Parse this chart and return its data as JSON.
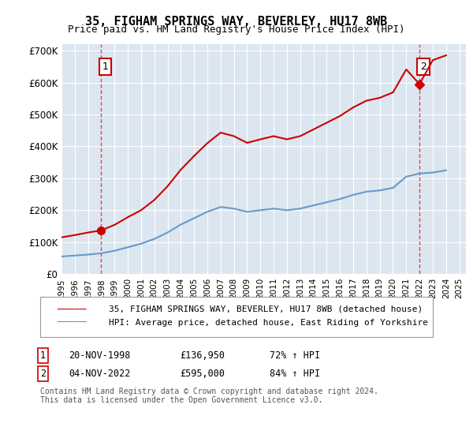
{
  "title": "35, FIGHAM SPRINGS WAY, BEVERLEY, HU17 8WB",
  "subtitle": "Price paid vs. HM Land Registry's House Price Index (HPI)",
  "property_label": "35, FIGHAM SPRINGS WAY, BEVERLEY, HU17 8WB (detached house)",
  "hpi_label": "HPI: Average price, detached house, East Riding of Yorkshire",
  "sale1_date": "20-NOV-1998",
  "sale1_price": 136950,
  "sale1_hpi": "72% ↑ HPI",
  "sale2_date": "04-NOV-2022",
  "sale2_price": 595000,
  "sale2_hpi": "84% ↑ HPI",
  "footer": "Contains HM Land Registry data © Crown copyright and database right 2024.\nThis data is licensed under the Open Government Licence v3.0.",
  "property_color": "#cc0000",
  "hpi_color": "#6699cc",
  "background_color": "#dce6f0",
  "ylim": [
    0,
    720000
  ],
  "yticks": [
    0,
    100000,
    200000,
    300000,
    400000,
    500000,
    600000,
    700000
  ],
  "ytick_labels": [
    "£0",
    "£100K",
    "£200K",
    "£300K",
    "£400K",
    "£500K",
    "£600K",
    "£700K"
  ],
  "hpi_years": [
    1995,
    1996,
    1997,
    1998,
    1999,
    2000,
    2001,
    2002,
    2003,
    2004,
    2005,
    2006,
    2007,
    2008,
    2009,
    2010,
    2011,
    2012,
    2013,
    2014,
    2015,
    2016,
    2017,
    2018,
    2019,
    2020,
    2021,
    2022,
    2023,
    2024
  ],
  "hpi_values": [
    55000,
    58000,
    61000,
    65000,
    73000,
    84000,
    95000,
    110000,
    130000,
    155000,
    175000,
    195000,
    210000,
    205000,
    195000,
    200000,
    205000,
    200000,
    205000,
    215000,
    225000,
    235000,
    248000,
    258000,
    262000,
    270000,
    305000,
    315000,
    318000,
    325000
  ],
  "property_hpi_years": [
    1995,
    1996,
    1997,
    1998,
    1999,
    2000,
    2001,
    2002,
    2003,
    2004,
    2005,
    2006,
    2007,
    2008,
    2009,
    2010,
    2011,
    2012,
    2013,
    2014,
    2015,
    2016,
    2017,
    2018,
    2019,
    2020,
    2021,
    2022,
    2023,
    2024
  ],
  "property_hpi_values": [
    115000,
    122000,
    130000,
    136950,
    154000,
    178000,
    200000,
    232000,
    275000,
    327000,
    370000,
    410000,
    443000,
    432000,
    411000,
    422000,
    432000,
    422000,
    432000,
    453000,
    474000,
    495000,
    522000,
    543000,
    552000,
    569000,
    641000,
    595000,
    670000,
    685000
  ],
  "xtick_years": [
    1995,
    1996,
    1997,
    1998,
    1999,
    2000,
    2001,
    2002,
    2003,
    2004,
    2005,
    2006,
    2007,
    2008,
    2009,
    2010,
    2011,
    2012,
    2013,
    2014,
    2015,
    2016,
    2017,
    2018,
    2019,
    2020,
    2021,
    2022,
    2023,
    2024,
    2025
  ]
}
